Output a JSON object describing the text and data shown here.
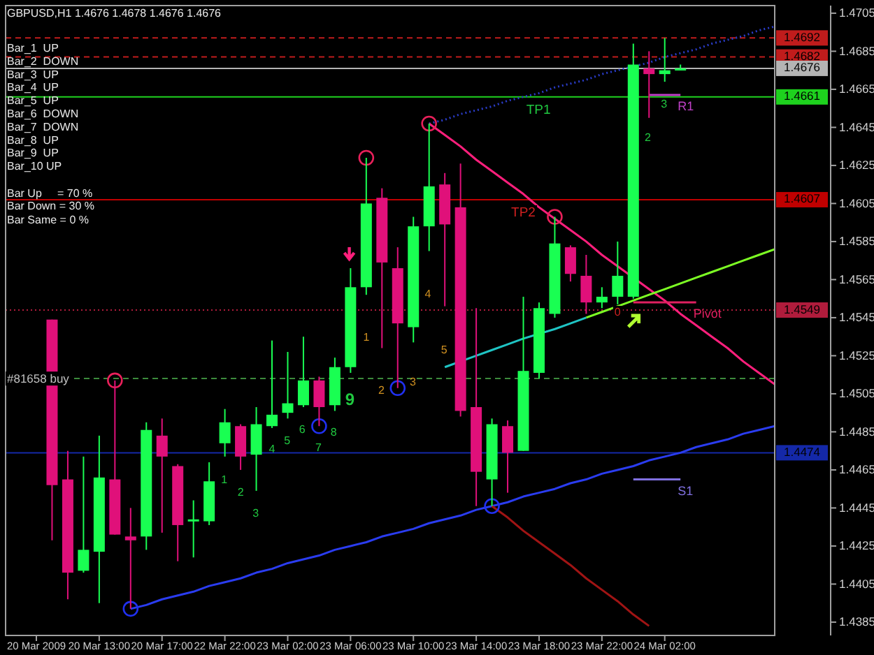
{
  "chart_data": {
    "type": "candlestick",
    "title": "GBPUSD,H1 1.4676 1.4678 1.4676 1.4676",
    "categories": [
      "20 Mar 2009",
      null,
      null,
      null,
      "20 Mar 13:00",
      null,
      null,
      null,
      "20 Mar 17:00",
      null,
      null,
      null,
      "22 Mar 22:00",
      null,
      null,
      null,
      "23 Mar 02:00",
      null,
      null,
      null,
      "23 Mar 06:00",
      null,
      null,
      null,
      "23 Mar 10:00",
      null,
      null,
      null,
      "23 Mar 14:00",
      null,
      null,
      null,
      "23 Mar 18:00",
      null,
      null,
      null,
      "23 Mar 22:00",
      null,
      null,
      null,
      "24 Mar 02:00",
      null,
      null,
      null,
      null,
      null,
      null,
      null
    ],
    "ohlc": [
      null,
      [
        1.4544,
        1.4544,
        1.4428,
        1.4457
      ],
      [
        1.446,
        1.4475,
        1.4397,
        1.4411
      ],
      [
        1.4412,
        1.4472,
        1.4411,
        1.4423
      ],
      [
        1.4422,
        1.4483,
        1.4395,
        1.4461
      ],
      [
        1.446,
        1.4512,
        1.4431,
        1.4431
      ],
      [
        1.443,
        1.4445,
        1.4392,
        1.4428
      ],
      [
        1.443,
        1.449,
        1.4423,
        1.4486
      ],
      [
        1.4483,
        1.4492,
        1.4432,
        1.4472
      ],
      [
        1.4467,
        1.4468,
        1.4417,
        1.4436
      ],
      [
        1.4438,
        1.4449,
        1.4419,
        1.4439
      ],
      [
        1.4438,
        1.4469,
        1.4436,
        1.4459
      ],
      [
        1.4479,
        1.4497,
        1.4472,
        1.449
      ],
      [
        1.4488,
        1.4489,
        1.4465,
        1.4472
      ],
      [
        1.4473,
        1.4498,
        1.4454,
        1.4489
      ],
      [
        1.4488,
        1.4533,
        1.4487,
        1.4494
      ],
      [
        1.4495,
        1.4527,
        1.4492,
        1.45
      ],
      [
        1.4499,
        1.4535,
        1.4498,
        1.4512
      ],
      [
        1.4512,
        1.4514,
        1.4488,
        1.4498
      ],
      [
        1.4499,
        1.4524,
        1.4496,
        1.4519
      ],
      [
        1.4519,
        1.4571,
        1.4516,
        1.4561
      ],
      [
        1.4561,
        1.4629,
        1.4557,
        1.4605
      ],
      [
        1.4608,
        1.4613,
        1.4529,
        1.4574
      ],
      [
        1.4571,
        1.4582,
        1.4508,
        1.4542
      ],
      [
        1.454,
        1.4598,
        1.4532,
        1.4593
      ],
      [
        1.4593,
        1.4647,
        1.458,
        1.4614
      ],
      [
        1.4615,
        1.4621,
        1.4551,
        1.4594
      ],
      [
        1.4603,
        1.4626,
        1.4493,
        1.4496
      ],
      [
        1.4498,
        1.455,
        1.4446,
        1.4464
      ],
      [
        1.446,
        1.4492,
        1.4446,
        1.4489
      ],
      [
        1.4488,
        1.4491,
        1.4453,
        1.4474
      ],
      [
        1.4475,
        1.4556,
        1.4475,
        1.4517
      ],
      [
        1.4516,
        1.4553,
        1.4513,
        1.455
      ],
      [
        1.4547,
        1.4598,
        1.4545,
        1.4584
      ],
      [
        1.4582,
        1.4583,
        1.4564,
        1.4568
      ],
      [
        1.4567,
        1.4578,
        1.4547,
        1.4553
      ],
      [
        1.4553,
        1.4561,
        1.455,
        1.4556
      ],
      [
        1.4556,
        1.4585,
        1.4552,
        1.4567
      ],
      [
        1.4556,
        1.4689,
        1.4555,
        1.4678
      ],
      [
        1.4676,
        1.4685,
        1.465,
        1.4673
      ],
      [
        1.4673,
        1.4692,
        1.4669,
        1.4675
      ],
      [
        1.4676,
        1.4678,
        1.4676,
        1.4676
      ],
      null,
      null,
      null,
      null,
      null,
      null
    ],
    "colors": [
      null,
      "#e0107a",
      "#e0107a",
      "#19ff52",
      "#19ff52",
      "#e0107a",
      "#e0107a",
      "#19ff52",
      "#e0107a",
      "#e0107a",
      "#19ff52",
      "#19ff52",
      "#19ff52",
      "#e0107a",
      "#19ff52",
      "#19ff52",
      "#19ff52",
      "#19ff52",
      "#e0107a",
      "#19ff52",
      "#19ff52",
      "#19ff52",
      "#e0107a",
      "#e0107a",
      "#19ff52",
      "#19ff52",
      "#e0107a",
      "#e0107a",
      "#e0107a",
      "#19ff52",
      "#e0107a",
      "#19ff52",
      "#19ff52",
      "#19ff52",
      "#e0107a",
      "#e0107a",
      "#19ff52",
      "#19ff52",
      "#19ff52",
      "#e0107a",
      "#19ff52",
      "#19ff52",
      null,
      null,
      null,
      null,
      null,
      null
    ],
    "series": [
      {
        "type": "line",
        "color": "#2a3cf0",
        "values": [
          null,
          null,
          null,
          null,
          null,
          null,
          1.4392,
          1.4394,
          1.4397,
          1.4399,
          1.4401,
          1.4404,
          1.4406,
          1.4408,
          1.4411,
          1.4413,
          1.4416,
          1.4418,
          1.442,
          1.4423,
          1.4425,
          1.4427,
          1.443,
          1.4432,
          1.4434,
          1.4437,
          1.4439,
          1.4441,
          1.4444,
          1.4446,
          1.4448,
          1.4451,
          1.4453,
          1.4455,
          1.4458,
          1.446,
          1.4463,
          1.4465,
          1.4467,
          1.447,
          1.4472,
          1.4474,
          1.4477,
          1.4479,
          1.4481,
          1.4484,
          1.4486,
          1.4488
        ]
      },
      {
        "type": "line",
        "color": "#2a3cc8",
        "line_style": "dotted",
        "values": [
          null,
          null,
          null,
          null,
          null,
          null,
          null,
          null,
          null,
          null,
          null,
          null,
          null,
          null,
          null,
          null,
          null,
          null,
          null,
          null,
          null,
          null,
          null,
          null,
          null,
          1.4647,
          1.4649,
          1.4652,
          1.4654,
          1.4656,
          1.4659,
          1.4661,
          1.4663,
          1.4666,
          1.4668,
          1.467,
          1.4673,
          1.4675,
          null,
          1.4679,
          1.4682,
          1.4684,
          1.4686,
          1.4689,
          1.4691,
          1.4693,
          1.4696,
          1.4698
        ]
      },
      {
        "type": "line",
        "color": "#ff1f7c",
        "values": [
          null,
          null,
          null,
          null,
          null,
          null,
          null,
          null,
          null,
          null,
          null,
          null,
          null,
          null,
          null,
          null,
          null,
          null,
          null,
          null,
          null,
          null,
          null,
          null,
          null,
          1.4647,
          1.4641,
          1.4635,
          1.4628,
          1.4622,
          1.4616,
          1.461,
          1.4603,
          1.4597,
          1.4591,
          1.4585,
          1.4578,
          1.4572,
          null,
          1.456,
          1.4554,
          1.4547,
          1.4541,
          1.4535,
          1.4529,
          1.4522,
          1.4516,
          1.451
        ]
      },
      {
        "type": "line",
        "color": "#7dff24",
        "values": [
          null,
          null,
          null,
          null,
          null,
          null,
          null,
          null,
          null,
          null,
          null,
          null,
          null,
          null,
          null,
          null,
          null,
          null,
          null,
          null,
          null,
          null,
          null,
          null,
          null,
          null,
          null,
          null,
          null,
          null,
          null,
          null,
          null,
          null,
          null,
          1.4545,
          1.4548,
          1.4551,
          1.4554,
          1.4557,
          1.456,
          1.4563,
          1.4566,
          1.4569,
          1.4572,
          1.4575,
          1.4578,
          1.4581
        ]
      },
      {
        "type": "line",
        "color": "#1fc4c4",
        "values": [
          null,
          null,
          null,
          null,
          null,
          null,
          null,
          null,
          null,
          null,
          null,
          null,
          null,
          null,
          null,
          null,
          null,
          null,
          null,
          null,
          null,
          null,
          null,
          null,
          null,
          null,
          1.4519,
          null,
          1.4525,
          1.4528,
          1.4531,
          1.4534,
          null,
          1.4539,
          1.4542,
          1.4545,
          null,
          null,
          null,
          null,
          null,
          null,
          null,
          null,
          null,
          null,
          null,
          null
        ]
      },
      {
        "type": "line",
        "color": "#a01414",
        "values": [
          null,
          null,
          null,
          null,
          null,
          null,
          null,
          null,
          null,
          null,
          null,
          null,
          null,
          null,
          null,
          null,
          null,
          null,
          null,
          null,
          null,
          null,
          null,
          null,
          null,
          null,
          null,
          null,
          null,
          1.4446,
          1.444,
          1.4433,
          1.4427,
          1.4421,
          1.4415,
          1.4408,
          1.4402,
          1.4396,
          1.4389,
          1.4383,
          null,
          null,
          null,
          null,
          null,
          null,
          null,
          null
        ]
      },
      {
        "type": "line",
        "name": "R1",
        "color": "#c040c8",
        "values": [
          null,
          null,
          null,
          null,
          null,
          null,
          null,
          null,
          null,
          null,
          null,
          null,
          null,
          null,
          null,
          null,
          null,
          null,
          null,
          null,
          null,
          null,
          null,
          null,
          null,
          null,
          null,
          null,
          null,
          null,
          null,
          null,
          null,
          null,
          null,
          null,
          null,
          null,
          null,
          1.4662,
          1.4662,
          1.4662,
          null,
          null,
          null,
          null,
          null,
          null
        ]
      },
      {
        "type": "line",
        "name": "Pivot",
        "color": "#e02060",
        "values": [
          null,
          null,
          null,
          null,
          null,
          null,
          null,
          null,
          null,
          null,
          null,
          null,
          null,
          null,
          null,
          null,
          null,
          null,
          null,
          null,
          null,
          null,
          null,
          null,
          null,
          null,
          null,
          null,
          null,
          null,
          null,
          null,
          null,
          null,
          null,
          null,
          null,
          null,
          1.4553,
          1.4553,
          1.4553,
          1.4553,
          1.4553,
          null,
          null,
          null,
          null,
          null
        ]
      },
      {
        "type": "line",
        "name": "S1",
        "color": "#8070e0",
        "values": [
          null,
          null,
          null,
          null,
          null,
          null,
          null,
          null,
          null,
          null,
          null,
          null,
          null,
          null,
          null,
          null,
          null,
          null,
          null,
          null,
          null,
          null,
          null,
          null,
          null,
          null,
          null,
          null,
          null,
          null,
          null,
          null,
          null,
          null,
          null,
          null,
          null,
          null,
          1.446,
          1.446,
          1.446,
          1.446,
          null,
          null,
          null,
          null,
          null,
          null
        ]
      },
      {
        "type": "scatter",
        "marker": "circle",
        "color": "#e8205a",
        "values": [
          null,
          null,
          null,
          null,
          null,
          1.4512,
          null,
          null,
          null,
          null,
          null,
          null,
          null,
          null,
          null,
          null,
          null,
          null,
          null,
          null,
          null,
          1.4629,
          null,
          null,
          null,
          1.4647,
          null,
          null,
          null,
          null,
          null,
          null,
          null,
          1.4598,
          null,
          null,
          null,
          null,
          null,
          null,
          null,
          null,
          null,
          null,
          null,
          null,
          null,
          null
        ]
      },
      {
        "type": "scatter",
        "marker": "circle",
        "color": "#2030f0",
        "values": [
          null,
          null,
          null,
          null,
          null,
          null,
          1.4392,
          null,
          null,
          null,
          null,
          null,
          null,
          null,
          null,
          null,
          null,
          null,
          1.4488,
          null,
          null,
          null,
          null,
          1.4508,
          null,
          null,
          null,
          null,
          null,
          1.4446,
          null,
          null,
          null,
          null,
          null,
          null,
          null,
          null,
          null,
          null,
          null,
          null,
          null,
          null,
          null,
          null,
          null,
          null
        ]
      }
    ],
    "ylim": [
      1.4378,
      1.4709
    ],
    "yticks": [
      1.4385,
      1.4405,
      1.4425,
      1.4445,
      1.4465,
      1.4485,
      1.4505,
      1.4525,
      1.4545,
      1.4565,
      1.4585,
      1.4605,
      1.4625,
      1.4645,
      1.4665,
      1.4685,
      1.4705
    ],
    "ref_lines": [
      {
        "axis": "y",
        "value": 1.4692,
        "label": "1.4692",
        "color": "#c01c1c",
        "line_style": "dashed"
      },
      {
        "axis": "y",
        "value": 1.4682,
        "label": "1.4682",
        "color": "#c01c1c",
        "line_style": "dashed"
      },
      {
        "axis": "y",
        "value": 1.4676,
        "label": "1.4676",
        "color": "#b4b4b4",
        "line_style": "solid"
      },
      {
        "axis": "y",
        "value": 1.4661,
        "label": "1.4661",
        "color": "#1ed21e",
        "line_style": "solid"
      },
      {
        "axis": "y",
        "value": 1.4607,
        "label": "1.4607",
        "color": "#c00000",
        "line_style": "solid"
      },
      {
        "axis": "y",
        "value": 1.4549,
        "label": "1.4549",
        "color": "#b01c3c",
        "line_style": "dotted"
      },
      {
        "axis": "y",
        "value": 1.4513,
        "label": null,
        "color": "#3c8a3c",
        "line_style": "dashed"
      },
      {
        "axis": "y",
        "value": 1.4474,
        "label": "1.4474",
        "color": "#1428a8",
        "line_style": "solid"
      }
    ],
    "annotations": [
      "Bar_1  UP",
      "Bar_2  DOWN",
      "Bar_3  UP",
      "Bar_4  UP",
      "Bar_5  UP",
      "Bar_6  DOWN",
      "Bar_7  DOWN",
      "Bar_8  UP",
      "Bar_9  UP",
      "Bar_10 UP",
      "Bar Up     = 70 %",
      "Bar Down = 30 %",
      "Bar Same = 0 %",
      "1",
      "2",
      "3",
      "4",
      "5",
      "6",
      "7",
      "8",
      "9",
      "1",
      "2",
      "3",
      "4",
      "5",
      {
        "text": "0",
        "y": 1.4549
      },
      "2",
      "3",
      {
        "text": "TP1",
        "y": 1.4661
      },
      {
        "text": "TP2",
        "y": 1.4607
      },
      {
        "text": "#81658 buy",
        "y": 1.4513
      }
    ],
    "grid": false,
    "legend": false
  }
}
